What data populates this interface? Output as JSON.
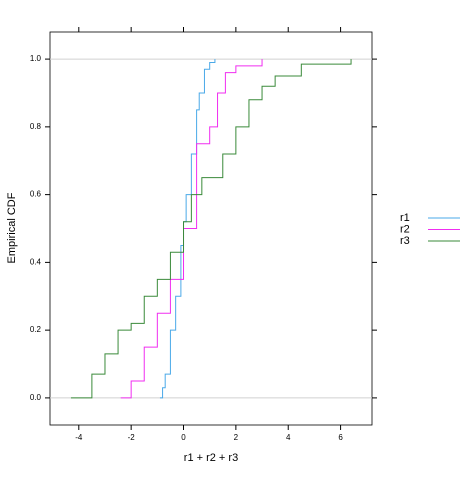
{
  "chart_data": {
    "type": "ecdf",
    "xlabel": "r1 + r2 + r3",
    "ylabel": "Empirical CDF",
    "xlim": [
      -5.1,
      7.2
    ],
    "ylim": [
      -0.08,
      1.08
    ],
    "xticks": [
      -4,
      -2,
      0,
      2,
      4,
      6
    ],
    "yticks": [
      {
        "value": 0,
        "label": "0.0"
      },
      {
        "value": 0.2,
        "label": "0.2"
      },
      {
        "value": 0.4,
        "label": "0.4"
      },
      {
        "value": 0.6,
        "label": "0.6"
      },
      {
        "value": 0.8,
        "label": "0.8"
      },
      {
        "value": 1,
        "label": "1.0"
      }
    ],
    "reference_lines": [
      0,
      1
    ],
    "legend": "right",
    "series": [
      {
        "name": "r1",
        "color": "#4aa9e8",
        "x": [
          -0.9,
          -0.8,
          -0.7,
          -0.5,
          -0.3,
          -0.1,
          0,
          0.1,
          0.3,
          0.5,
          0.6,
          0.8,
          1.0,
          1.2
        ],
        "values": [
          0,
          0.03,
          0.07,
          0.2,
          0.3,
          0.45,
          0.52,
          0.6,
          0.72,
          0.85,
          0.9,
          0.97,
          0.99,
          1.0
        ]
      },
      {
        "name": "r2",
        "color": "#f02ef0",
        "x": [
          -2.4,
          -2.0,
          -1.5,
          -1.0,
          -0.5,
          0,
          0.5,
          1.0,
          1.3,
          1.6,
          2.0,
          3.0
        ],
        "values": [
          0,
          0.05,
          0.15,
          0.25,
          0.35,
          0.5,
          0.75,
          0.8,
          0.9,
          0.96,
          0.98,
          1.0
        ]
      },
      {
        "name": "r3",
        "color": "#3a8a3a",
        "x": [
          -4.3,
          -3.5,
          -3.0,
          -2.5,
          -2.0,
          -1.5,
          -1.0,
          -0.5,
          0,
          0.3,
          0.7,
          1.5,
          2.0,
          2.5,
          3.0,
          3.5,
          4.5,
          6.4
        ],
        "values": [
          0,
          0.07,
          0.13,
          0.2,
          0.22,
          0.3,
          0.35,
          0.43,
          0.52,
          0.6,
          0.65,
          0.72,
          0.8,
          0.88,
          0.92,
          0.95,
          0.985,
          1.0
        ]
      }
    ]
  }
}
